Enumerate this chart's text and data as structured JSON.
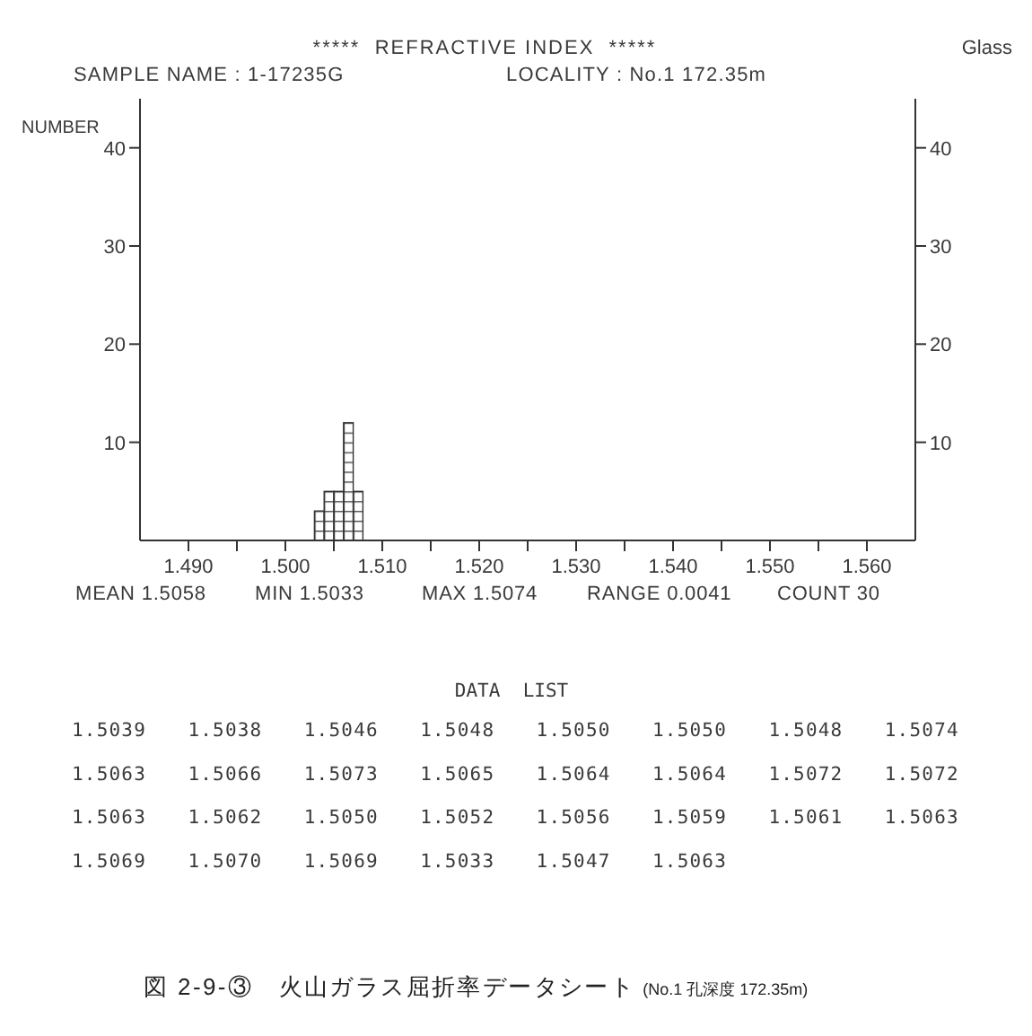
{
  "chart_data": {
    "type": "histogram",
    "title": "*****  REFRACTIVE INDEX  *****",
    "subtitle": "SAMPLE NAME : 1-17235G",
    "ylabel": "NUMBER",
    "bins": [
      1.503,
      1.504,
      1.505,
      1.506,
      1.507,
      1.508
    ],
    "values": [
      3,
      5,
      5,
      12,
      5
    ],
    "xlim": [
      1.485,
      1.565
    ],
    "xticks": [
      {
        "value": 1.49,
        "label": "1.490"
      },
      {
        "value": 1.495,
        "label": null
      },
      {
        "value": 1.5,
        "label": "1.500"
      },
      {
        "value": 1.505,
        "label": null
      },
      {
        "value": 1.51,
        "label": "1.510"
      },
      {
        "value": 1.515,
        "label": null
      },
      {
        "value": 1.52,
        "label": "1.520"
      },
      {
        "value": 1.525,
        "label": null
      },
      {
        "value": 1.53,
        "label": "1.530"
      },
      {
        "value": 1.535,
        "label": null
      },
      {
        "value": 1.54,
        "label": "1.540"
      },
      {
        "value": 1.545,
        "label": null
      },
      {
        "value": 1.55,
        "label": "1.550"
      },
      {
        "value": 1.555,
        "label": null
      },
      {
        "value": 1.56,
        "label": "1.560"
      }
    ],
    "ylim": [
      0,
      45
    ],
    "yticks": [
      10,
      20,
      30,
      40
    ],
    "y2lim": [
      0,
      45
    ],
    "y2ticks": [
      10,
      20,
      30,
      40
    ],
    "annotations": [
      "Glass",
      "LOCALITY : No.1 172.35m",
      "MEAN 1.5058",
      "MIN 1.5033",
      "MAX 1.5074",
      "RANGE 0.0041",
      "COUNT 30",
      "DATA  LIST",
      "1.5039",
      "1.5038",
      "1.5046",
      "1.5048",
      "1.5050",
      "1.5050",
      "1.5048",
      "1.5074",
      "1.5063",
      "1.5066",
      "1.5073",
      "1.5065",
      "1.5064",
      "1.5064",
      "1.5072",
      "1.5072",
      "1.5063",
      "1.5062",
      "1.5050",
      "1.5052",
      "1.5056",
      "1.5059",
      "1.5061",
      "1.5063",
      "1.5069",
      "1.5070",
      "1.5069",
      "1.5033",
      "1.5047",
      "1.5063",
      "図 2-9-③　火山ガラス屈折率データシート",
      "(No.1 孔深度 172.35m)"
    ]
  }
}
